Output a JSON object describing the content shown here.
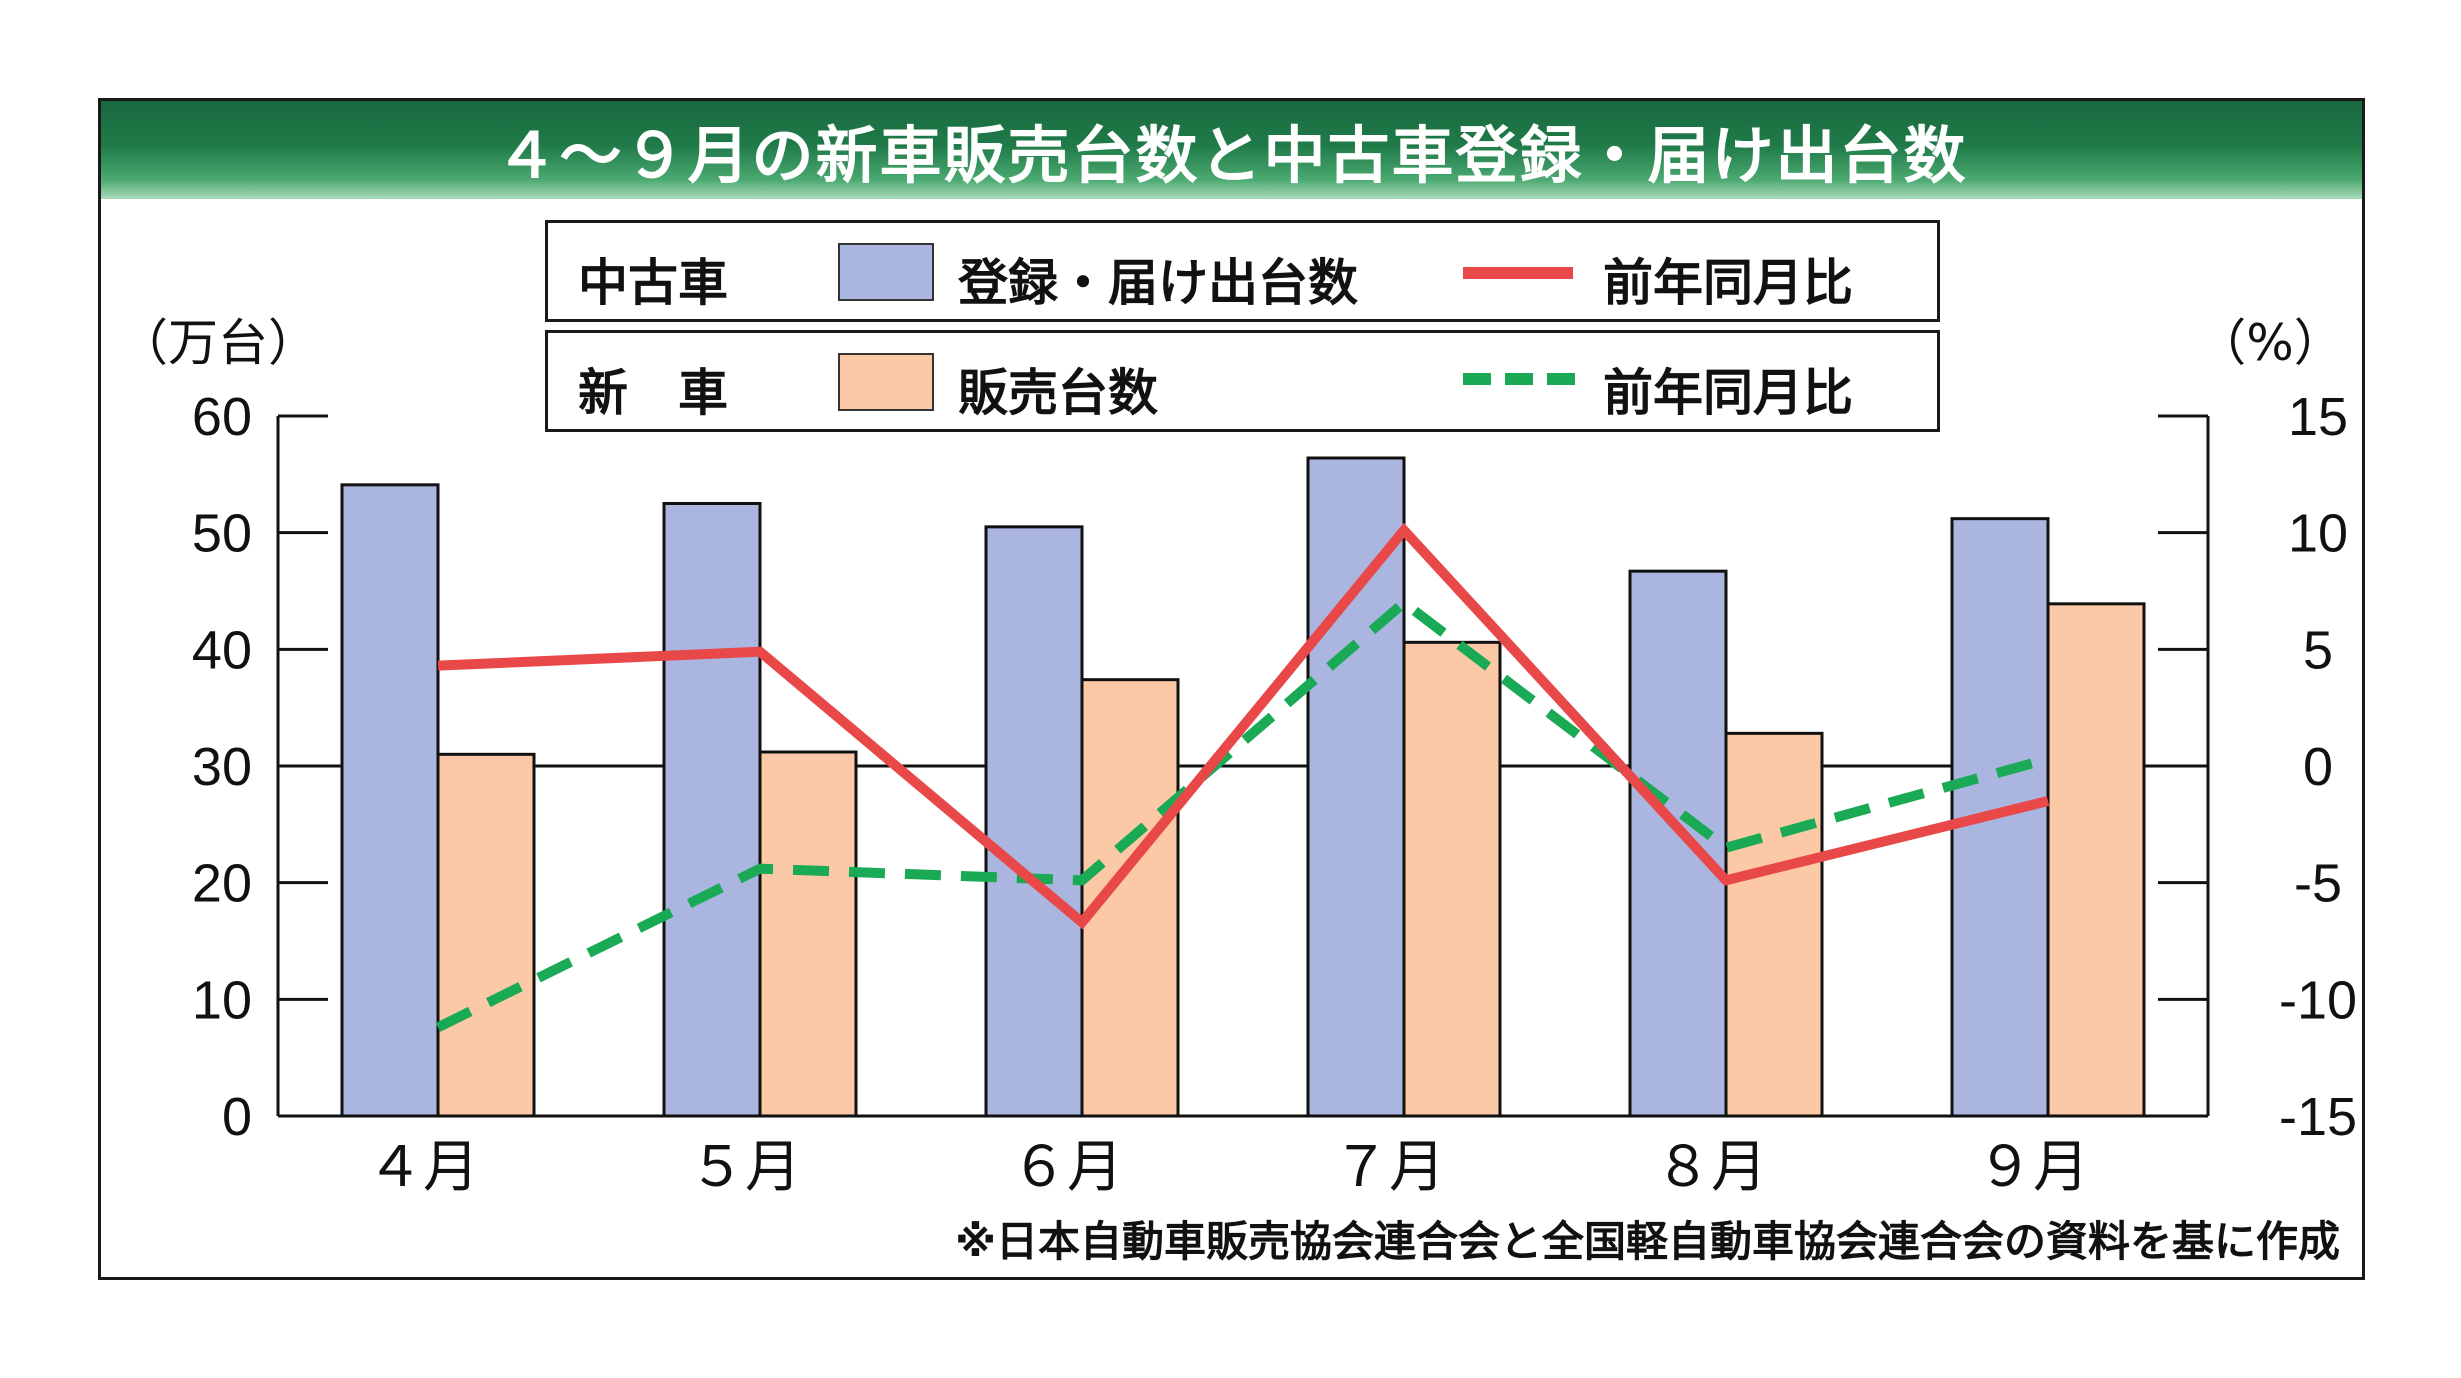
{
  "title": "４～９月の新車販売台数と中古車登録・届け出台数",
  "legend": {
    "used": {
      "label": "中古車",
      "bar_label": "登録・届け出台数",
      "line_label": "前年同月比"
    },
    "new": {
      "label": "新　車",
      "bar_label": "販売台数",
      "line_label": "前年同月比"
    }
  },
  "colors": {
    "used_bar": "#aab5e0",
    "new_bar": "#fbc9a5",
    "used_line": "#e84848",
    "new_line": "#1aaa55",
    "title_bg": "#1f7a48"
  },
  "left_unit": "（万台）",
  "right_unit": "（%）",
  "footnote": "※日本自動車販売協会連合会と全国軽自動車協会連合会の資料を基に作成",
  "chart_data": {
    "type": "bar",
    "title": "４～９月の新車販売台数と中古車登録・届け出台数",
    "categories": [
      "４月",
      "５月",
      "６月",
      "７月",
      "８月",
      "９月"
    ],
    "series": [
      {
        "name": "中古車 登録・届け出台数",
        "type": "bar",
        "axis": "left",
        "values": [
          54.1,
          52.5,
          50.5,
          56.4,
          46.7,
          51.2
        ]
      },
      {
        "name": "新車 販売台数",
        "type": "bar",
        "axis": "left",
        "values": [
          31.0,
          31.2,
          37.4,
          40.6,
          32.8,
          43.9
        ]
      },
      {
        "name": "中古車 前年同月比",
        "type": "line",
        "axis": "right",
        "values": [
          4.3,
          4.9,
          -6.7,
          10.1,
          -4.9,
          -1.5
        ]
      },
      {
        "name": "新車 前年同月比",
        "type": "line",
        "axis": "right",
        "values": [
          -11.2,
          -4.4,
          -4.9,
          7.0,
          -3.5,
          0.3
        ]
      }
    ],
    "ylim": [
      0,
      60
    ],
    "y_ticks": [
      "0",
      "10",
      "20",
      "30",
      "40",
      "50",
      "60"
    ],
    "y2lim": [
      -15,
      15
    ],
    "y2_ticks": [
      "-15",
      "-10",
      "-5",
      "0",
      "5",
      "10",
      "15"
    ],
    "ylabel": "（万台）",
    "y2label": "（%）",
    "xlabel": ""
  }
}
